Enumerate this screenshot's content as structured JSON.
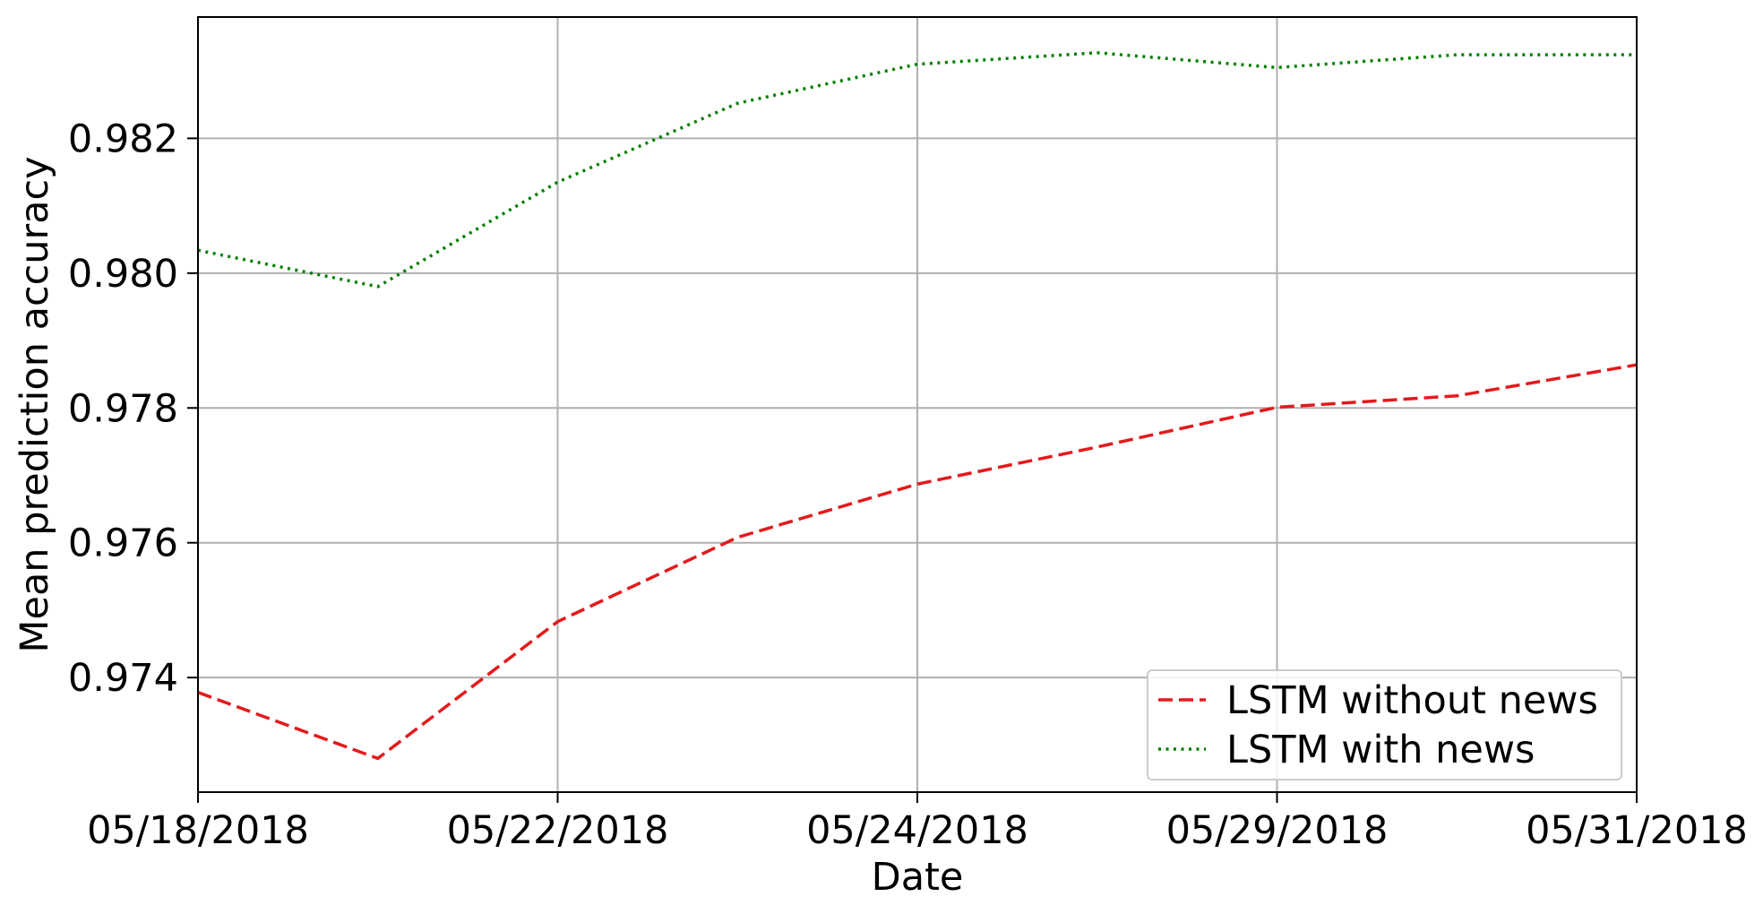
{
  "chart_data": {
    "type": "line",
    "title": "",
    "xlabel": "Date",
    "ylabel": "Mean prediction accuracy",
    "x_tick_labels": [
      "05/18/2018",
      "05/22/2018",
      "05/24/2018",
      "05/29/2018",
      "05/31/2018"
    ],
    "x_tick_positions": [
      0,
      2,
      4,
      6,
      8
    ],
    "xlim": [
      0,
      8
    ],
    "ylim": [
      0.9723,
      0.9838
    ],
    "y_ticks": [
      0.974,
      0.976,
      0.978,
      0.98,
      0.982
    ],
    "y_tick_labels": [
      "0.974",
      "0.976",
      "0.978",
      "0.980",
      "0.982"
    ],
    "grid": true,
    "legend_position": "lower-right",
    "x": [
      0,
      1,
      2,
      3,
      4,
      5,
      6,
      7,
      8
    ],
    "series": [
      {
        "name": "LSTM without news",
        "color": "#e31a1c",
        "dash": "dashed",
        "values": [
          0.97378,
          0.9728,
          0.97483,
          0.97608,
          0.97687,
          0.97742,
          0.97801,
          0.97818,
          0.97864
        ]
      },
      {
        "name": "LSTM with news",
        "color": "#008000",
        "dash": "dotted",
        "values": [
          0.98034,
          0.9798,
          0.98135,
          0.98252,
          0.9831,
          0.98327,
          0.98305,
          0.98324,
          0.98324
        ]
      }
    ]
  }
}
